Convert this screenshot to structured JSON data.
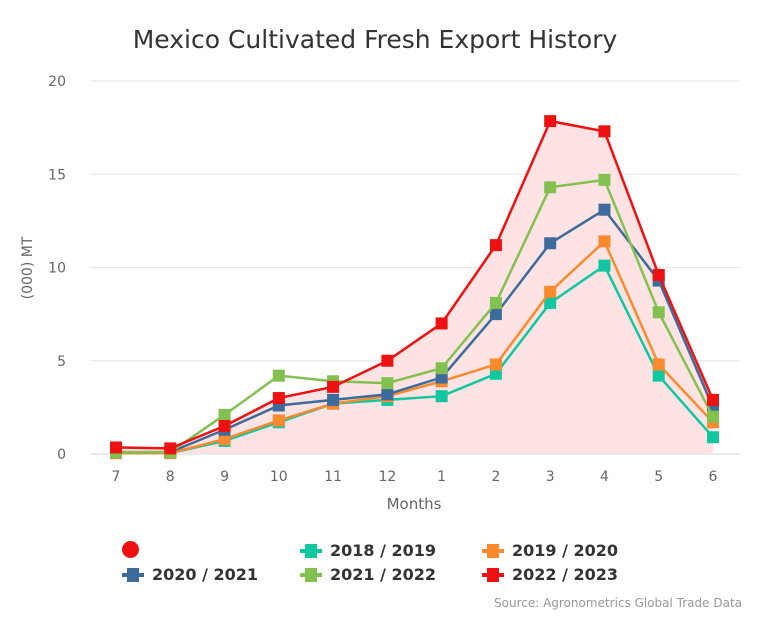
{
  "chart_data": {
    "type": "line",
    "title": "Mexico Cultivated Fresh Export History",
    "xlabel": "Months",
    "ylabel": "(000) MT",
    "categories": [
      "7",
      "8",
      "9",
      "10",
      "11",
      "12",
      "1",
      "2",
      "3",
      "4",
      "5",
      "6"
    ],
    "ylim": [
      0,
      20
    ],
    "yticks": [
      0,
      5,
      10,
      15,
      20
    ],
    "grid": true,
    "legend_placement": "bottom",
    "area_fill_color": "#fde3e3",
    "series": [
      {
        "name": "2018 / 2019",
        "color": "#11c7a0",
        "values": [
          0.05,
          0.05,
          0.7,
          1.7,
          2.7,
          2.9,
          3.1,
          4.3,
          8.1,
          10.1,
          4.2,
          0.9
        ]
      },
      {
        "name": "2019 / 2020",
        "color": "#fb8a2e",
        "values": [
          0.05,
          0.05,
          0.8,
          1.8,
          2.7,
          3.1,
          3.9,
          4.8,
          8.7,
          11.4,
          4.8,
          1.7
        ]
      },
      {
        "name": "2020 / 2021",
        "color": "#3d6b9c",
        "values": [
          0.1,
          0.1,
          1.3,
          2.6,
          2.9,
          3.2,
          4.1,
          7.5,
          11.3,
          13.1,
          9.3,
          2.5
        ]
      },
      {
        "name": "2021 / 2022",
        "color": "#82c150",
        "values": [
          0.1,
          0.1,
          2.1,
          4.2,
          3.9,
          3.8,
          4.6,
          8.1,
          14.3,
          14.7,
          7.6,
          2.0
        ]
      },
      {
        "name": "2022 / 2023",
        "color": "#ee1111",
        "values": [
          0.35,
          0.3,
          1.5,
          3.0,
          3.6,
          5.0,
          7.0,
          11.2,
          17.85,
          17.3,
          9.6,
          2.9
        ]
      }
    ],
    "unnamed_legend_marker_color": "#ee1111"
  },
  "source": "Source: Agronometrics Global Trade Data"
}
